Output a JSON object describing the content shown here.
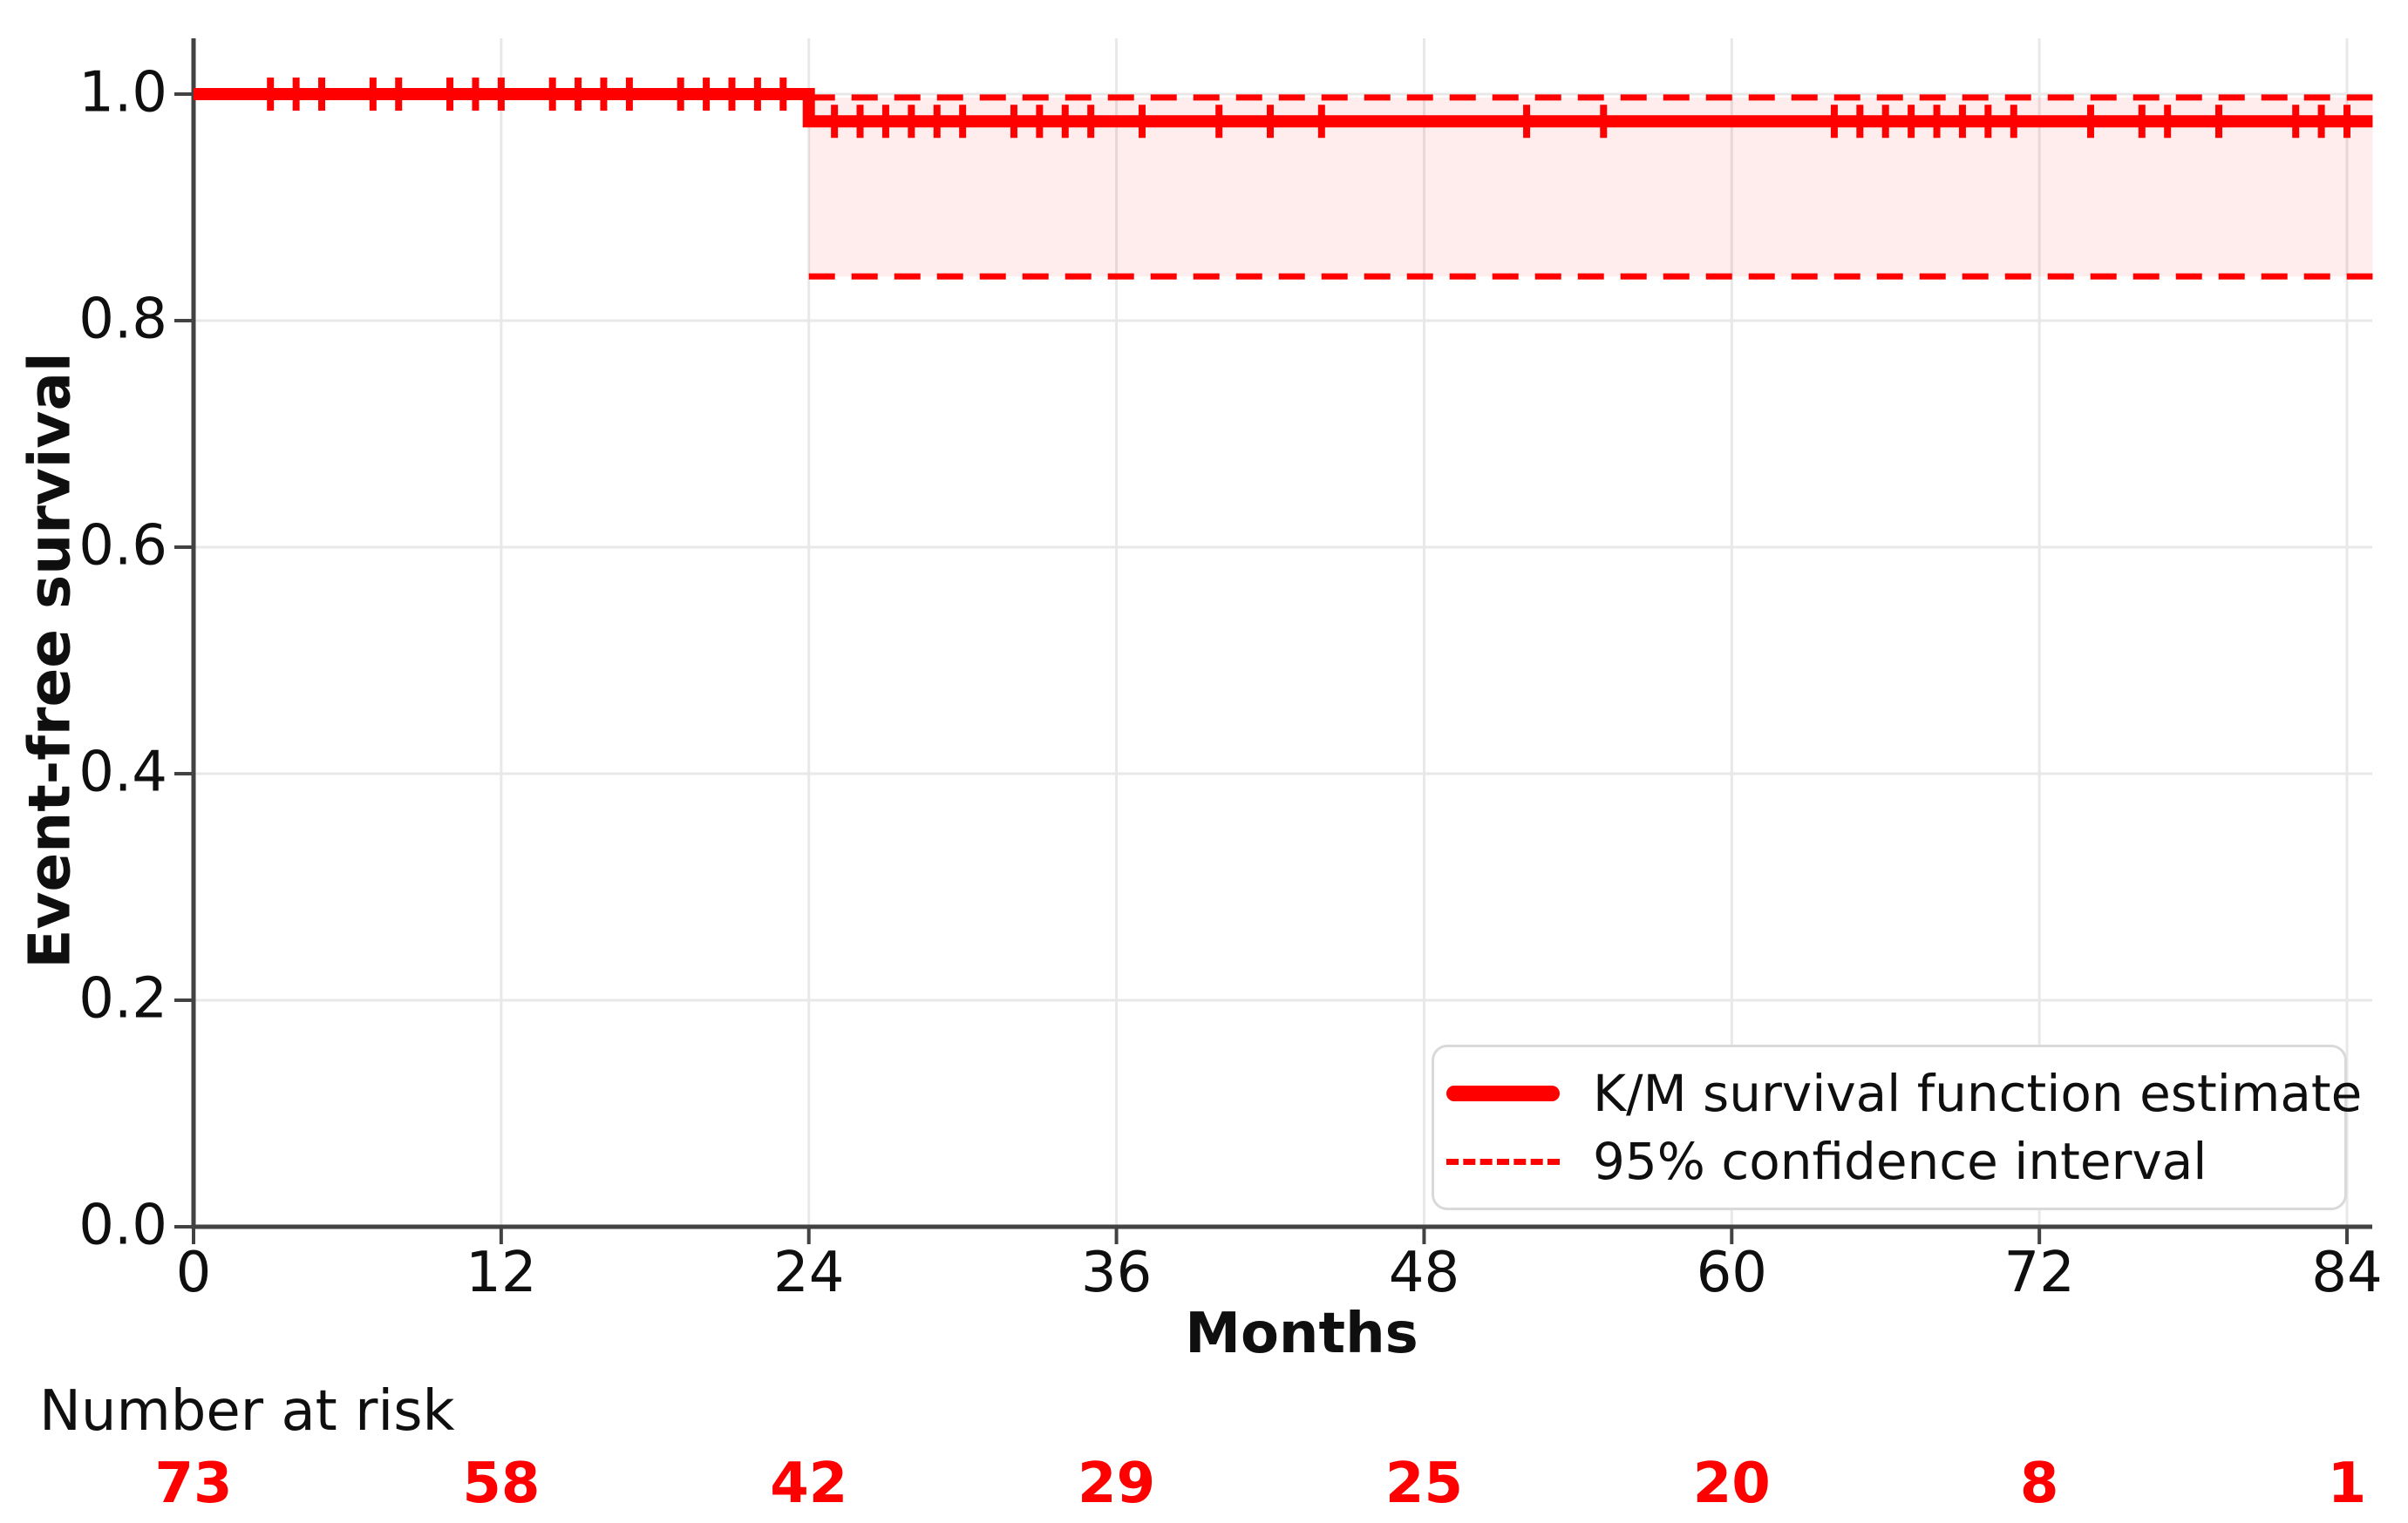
{
  "chart_data": {
    "type": "line",
    "subtype": "kaplan-meier-step",
    "title": "",
    "xlabel": "Months",
    "ylabel": "Event-free survival",
    "xlim": [
      0,
      85
    ],
    "ylim": [
      0,
      1.05
    ],
    "grid": true,
    "x_ticks": [
      0,
      12,
      24,
      36,
      48,
      60,
      72,
      84
    ],
    "y_ticks": [
      0.0,
      0.2,
      0.4,
      0.6,
      0.8,
      1.0
    ],
    "y_tick_labels": [
      "0.0",
      "0.2",
      "0.4",
      "0.6",
      "0.8",
      "1.0"
    ],
    "legend_position": "lower right",
    "series": [
      {
        "name": "K/M survival function estimate",
        "style": "solid-step",
        "x": [
          0,
          24,
          85
        ],
        "y": [
          1.0,
          0.976,
          0.976
        ]
      },
      {
        "name": "95% confidence interval",
        "style": "dashed-band",
        "x_start": 24,
        "x_end": 85,
        "upper": 0.997,
        "lower": 0.839
      }
    ],
    "censor_marks": {
      "pre_step": {
        "survival": 1.0,
        "months": [
          3,
          4,
          5,
          7,
          8,
          10,
          11,
          12,
          14,
          15,
          16,
          17,
          19,
          20,
          21,
          22,
          23
        ]
      },
      "post_step": {
        "survival": 0.976,
        "months": [
          25,
          26,
          27,
          28,
          29,
          30,
          32,
          33,
          34,
          35,
          37,
          40,
          42,
          44,
          52,
          55,
          64,
          65,
          66,
          67,
          68,
          69,
          70,
          71,
          74,
          76,
          77,
          79,
          82,
          83,
          84
        ]
      }
    },
    "number_at_risk": {
      "label": "Number at risk",
      "months": [
        0,
        12,
        24,
        36,
        48,
        60,
        72,
        84
      ],
      "counts": [
        73,
        58,
        42,
        29,
        25,
        20,
        8,
        1
      ]
    }
  },
  "legend": {
    "entries": [
      {
        "label": "K/M survival function estimate",
        "style": "solid"
      },
      {
        "label": "95% confidence interval",
        "style": "dashed"
      }
    ]
  },
  "colors": {
    "curve": "#ff0000",
    "band_fill": "#ff0000",
    "band_opacity": 0.075,
    "grid": "#e8e8e8",
    "axis": "#424242",
    "text": "#0f0f0f"
  }
}
